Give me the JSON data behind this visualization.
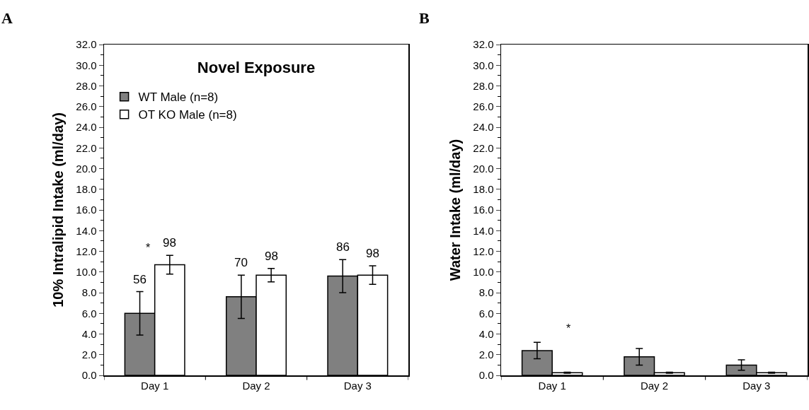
{
  "chart_data": [
    {
      "type": "bar",
      "title": "Novel Exposure",
      "ylabel": "10% Intralipid Intake (ml/day)",
      "categories": [
        "Day 1",
        "Day 2",
        "Day 3"
      ],
      "series": [
        {
          "name": "WT Male (n=8)",
          "color": "#808080",
          "values": [
            6.0,
            7.6,
            9.6
          ],
          "errors": [
            2.1,
            2.1,
            1.6
          ]
        },
        {
          "name": "OT KO Male (n=8)",
          "color": "#ffffff",
          "values": [
            10.7,
            9.7,
            9.7
          ],
          "errors": [
            0.9,
            0.65,
            0.9
          ]
        }
      ],
      "ylim": [
        0,
        32
      ],
      "yticks": [
        {
          "value": 0,
          "label": "0.0"
        },
        {
          "value": 2,
          "label": "2.0"
        },
        {
          "value": 4,
          "label": "4.0"
        },
        {
          "value": 6,
          "label": "6.0"
        },
        {
          "value": 8,
          "label": "8.0"
        },
        {
          "value": 10,
          "label": "10.0"
        },
        {
          "value": 12,
          "label": "12.0"
        },
        {
          "value": 14,
          "label": "14.0"
        },
        {
          "value": 16,
          "label": "16.0"
        },
        {
          "value": 18,
          "label": "18.0"
        },
        {
          "value": 20,
          "label": "20.0"
        },
        {
          "value": 22,
          "label": "22.0"
        },
        {
          "value": 24,
          "label": "24.0"
        },
        {
          "value": 26,
          "label": "26.0"
        },
        {
          "value": 28,
          "label": "28.0"
        },
        {
          "value": 30,
          "label": "30.0"
        },
        {
          "value": 32,
          "label": "32.0"
        }
      ],
      "grid": false,
      "legend": "top left",
      "annotations": [
        "A",
        "*",
        {
          "text": "56",
          "x": "Day 1",
          "y": 6.0
        },
        {
          "text": "98",
          "x": "Day 1",
          "y": 10.7
        },
        {
          "text": "70",
          "x": "Day 2",
          "y": 7.6
        },
        {
          "text": "98",
          "x": "Day 2",
          "y": 9.7
        },
        {
          "text": "86",
          "x": "Day 3",
          "y": 9.6
        },
        {
          "text": "98",
          "x": "Day 3",
          "y": 9.7
        }
      ]
    },
    {
      "type": "bar",
      "ylabel": "Water Intake (ml/day)",
      "categories": [
        "Day 1",
        "Day 2",
        "Day 3"
      ],
      "series": [
        {
          "color": "#808080",
          "values": [
            2.4,
            1.8,
            1.0
          ],
          "errors": [
            0.8,
            0.8,
            0.5
          ]
        },
        {
          "color": "#ffffff",
          "values": [
            0.25,
            0.25,
            0.25
          ],
          "errors": [
            0.05,
            0.05,
            0.05
          ]
        }
      ],
      "ylim": [
        0,
        32
      ],
      "yticks": [
        {
          "value": 0,
          "label": "0.0"
        },
        {
          "value": 2,
          "label": "2.0"
        },
        {
          "value": 4,
          "label": "4.0"
        },
        {
          "value": 6,
          "label": "6.0"
        },
        {
          "value": 8,
          "label": "8.0"
        },
        {
          "value": 10,
          "label": "10.0"
        },
        {
          "value": 12,
          "label": "12.0"
        },
        {
          "value": 14,
          "label": "14.0"
        },
        {
          "value": 16,
          "label": "16.0"
        },
        {
          "value": 18,
          "label": "18.0"
        },
        {
          "value": 20,
          "label": "20.0"
        },
        {
          "value": 22,
          "label": "22.0"
        },
        {
          "value": 24,
          "label": "24.0"
        },
        {
          "value": 26,
          "label": "26.0"
        },
        {
          "value": 28,
          "label": "28.0"
        },
        {
          "value": 30,
          "label": "30.0"
        },
        {
          "value": 32,
          "label": "32.0"
        }
      ],
      "grid": false,
      "legend": false,
      "annotations": [
        "B",
        "*"
      ]
    }
  ]
}
